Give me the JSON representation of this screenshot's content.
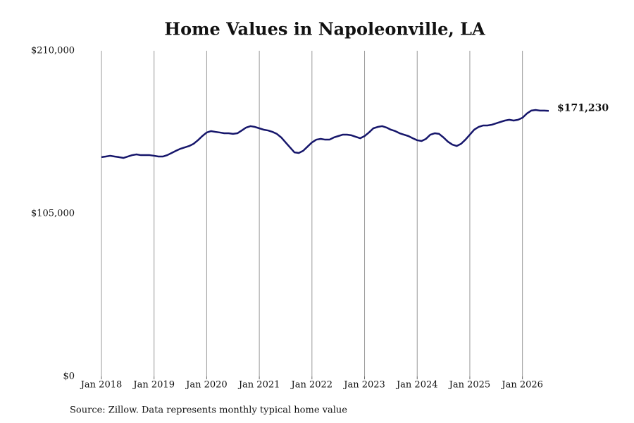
{
  "chart_data": {
    "type": "line",
    "title": "Home Values in Napoleonville, LA",
    "source": "Source: Zillow. Data represents monthly typical home value",
    "x": [
      "2018-01",
      "2018-02",
      "2018-03",
      "2018-04",
      "2018-05",
      "2018-06",
      "2018-07",
      "2018-08",
      "2018-09",
      "2018-10",
      "2018-11",
      "2018-12",
      "2019-01",
      "2019-02",
      "2019-03",
      "2019-04",
      "2019-05",
      "2019-06",
      "2019-07",
      "2019-08",
      "2019-09",
      "2019-10",
      "2019-11",
      "2019-12",
      "2020-01",
      "2020-02",
      "2020-03",
      "2020-04",
      "2020-05",
      "2020-06",
      "2020-07",
      "2020-08",
      "2020-09",
      "2020-10",
      "2020-11",
      "2020-12",
      "2021-01",
      "2021-02",
      "2021-03",
      "2021-04",
      "2021-05",
      "2021-06",
      "2021-07",
      "2021-08",
      "2021-09",
      "2021-10",
      "2021-11",
      "2021-12",
      "2022-01",
      "2022-02",
      "2022-03",
      "2022-04",
      "2022-05",
      "2022-06",
      "2022-07",
      "2022-08",
      "2022-09",
      "2022-10",
      "2022-11",
      "2022-12",
      "2023-01",
      "2023-02",
      "2023-03",
      "2023-04",
      "2023-05",
      "2023-06",
      "2023-07",
      "2023-08",
      "2023-09",
      "2023-10",
      "2023-11",
      "2023-12",
      "2024-01",
      "2024-02",
      "2024-03",
      "2024-04",
      "2024-05",
      "2024-06",
      "2024-07",
      "2024-08",
      "2024-09",
      "2024-10",
      "2024-11",
      "2024-12",
      "2025-01",
      "2025-02",
      "2025-03",
      "2025-04",
      "2025-05",
      "2025-06",
      "2025-07",
      "2025-08",
      "2025-09",
      "2025-10",
      "2025-11",
      "2025-12",
      "2026-01",
      "2026-02",
      "2026-03",
      "2026-04",
      "2026-05",
      "2026-06",
      "2026-07"
    ],
    "series": [
      {
        "name": "Typical home value",
        "color": "#16166b",
        "values": [
          141400,
          141800,
          142300,
          141800,
          141400,
          140900,
          141800,
          142700,
          143200,
          142700,
          142700,
          142700,
          142300,
          141800,
          141800,
          142700,
          144100,
          145500,
          146800,
          147700,
          148600,
          150000,
          152300,
          155000,
          157300,
          158200,
          157700,
          157300,
          156800,
          156800,
          156400,
          156800,
          158600,
          160500,
          161400,
          160900,
          160000,
          159100,
          158600,
          157700,
          156400,
          154100,
          150900,
          147700,
          144500,
          144100,
          145500,
          148200,
          150900,
          152700,
          153200,
          152700,
          152700,
          154100,
          155000,
          155900,
          155900,
          155500,
          154500,
          153600,
          155000,
          157300,
          160000,
          160900,
          161400,
          160500,
          159100,
          158200,
          156800,
          155900,
          155000,
          153600,
          152300,
          151800,
          153200,
          155900,
          156800,
          156400,
          154100,
          151400,
          149500,
          148600,
          150000,
          152700,
          155900,
          159100,
          160900,
          161800,
          161800,
          162300,
          163200,
          164100,
          165000,
          165500,
          165000,
          165500,
          166800,
          169500,
          171400,
          171800,
          171400,
          171400,
          171230
        ],
        "value_labels": [
          null,
          null,
          null,
          null,
          null,
          null,
          null,
          null,
          null,
          null,
          null,
          null,
          null,
          null,
          null,
          null,
          null,
          null,
          null,
          null,
          null,
          null,
          null,
          null,
          null,
          null,
          null,
          null,
          null,
          null,
          null,
          null,
          null,
          null,
          null,
          null,
          null,
          null,
          null,
          null,
          null,
          null,
          null,
          null,
          null,
          null,
          null,
          null,
          null,
          null,
          null,
          null,
          null,
          null,
          null,
          null,
          null,
          null,
          null,
          null,
          null,
          null,
          null,
          null,
          null,
          null,
          null,
          null,
          null,
          null,
          null,
          null,
          null,
          null,
          null,
          null,
          null,
          null,
          null,
          null,
          null,
          null,
          null,
          null,
          null,
          null,
          null,
          null,
          null,
          null,
          null,
          null,
          null,
          null,
          null,
          null,
          null,
          null,
          null,
          null,
          null,
          null,
          "$171,230"
        ]
      }
    ],
    "xlim": [
      "2018-01",
      "2026-07"
    ],
    "xticks": [
      {
        "value": "2018-01",
        "label": "Jan 2018"
      },
      {
        "value": "2019-01",
        "label": "Jan 2019"
      },
      {
        "value": "2020-01",
        "label": "Jan 2020"
      },
      {
        "value": "2021-01",
        "label": "Jan 2021"
      },
      {
        "value": "2022-01",
        "label": "Jan 2022"
      },
      {
        "value": "2023-01",
        "label": "Jan 2023"
      },
      {
        "value": "2024-01",
        "label": "Jan 2024"
      },
      {
        "value": "2025-01",
        "label": "Jan 2025"
      },
      {
        "value": "2026-01",
        "label": "Jan 2026"
      }
    ],
    "ylim": [
      0,
      210000
    ],
    "yticks": [
      {
        "value": 0,
        "label": "$0"
      },
      {
        "value": 105000,
        "label": "$105,000"
      },
      {
        "value": 210000,
        "label": "$210,000"
      }
    ],
    "grid": "x"
  }
}
